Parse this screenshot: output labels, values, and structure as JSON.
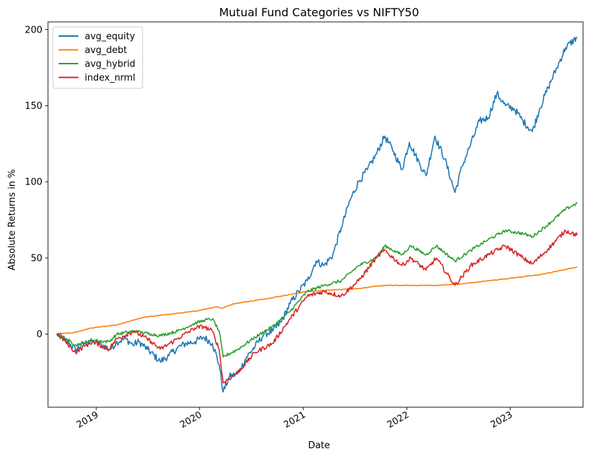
{
  "chart_data": {
    "type": "line",
    "title": "Mutual Fund Categories vs NIFTY50",
    "xlabel": "Date",
    "ylabel": "Absolute Returns in %",
    "xlim": [
      "2018-07-15",
      "2023-09-15"
    ],
    "ylim": [
      -48,
      205
    ],
    "x_ticks": [
      "2019-01-01",
      "2020-01-01",
      "2021-01-01",
      "2022-01-01",
      "2023-01-01"
    ],
    "x_tick_labels": [
      "2019",
      "2020",
      "2021",
      "2022",
      "2023"
    ],
    "y_ticks": [
      0,
      50,
      100,
      150,
      200
    ],
    "y_tick_labels": [
      "0",
      "50",
      "100",
      "150",
      "200"
    ],
    "grid": false,
    "legend_position": "top-left",
    "series": [
      {
        "name": "avg_equity",
        "color": "#1f77b4",
        "points": [
          [
            "2018-08-15",
            0
          ],
          [
            "2018-09-15",
            -4
          ],
          [
            "2018-10-20",
            -10
          ],
          [
            "2018-11-20",
            -6
          ],
          [
            "2018-12-20",
            -5
          ],
          [
            "2019-01-20",
            -7
          ],
          [
            "2019-02-20",
            -10
          ],
          [
            "2019-03-15",
            -5
          ],
          [
            "2019-04-15",
            -3
          ],
          [
            "2019-05-10",
            -7
          ],
          [
            "2019-06-01",
            -5
          ],
          [
            "2019-07-01",
            -10
          ],
          [
            "2019-08-15",
            -18
          ],
          [
            "2019-09-15",
            -14
          ],
          [
            "2019-10-15",
            -9
          ],
          [
            "2019-11-15",
            -6
          ],
          [
            "2019-12-15",
            -5
          ],
          [
            "2020-01-15",
            -2
          ],
          [
            "2020-02-15",
            -6
          ],
          [
            "2020-03-10",
            -20
          ],
          [
            "2020-03-24",
            -38
          ],
          [
            "2020-04-15",
            -28
          ],
          [
            "2020-05-15",
            -26
          ],
          [
            "2020-06-15",
            -15
          ],
          [
            "2020-07-15",
            -8
          ],
          [
            "2020-08-15",
            0
          ],
          [
            "2020-09-15",
            2
          ],
          [
            "2020-10-15",
            8
          ],
          [
            "2020-11-15",
            20
          ],
          [
            "2020-12-15",
            28
          ],
          [
            "2021-01-15",
            35
          ],
          [
            "2021-02-15",
            48
          ],
          [
            "2021-03-15",
            45
          ],
          [
            "2021-04-15",
            52
          ],
          [
            "2021-05-15",
            70
          ],
          [
            "2021-06-15",
            88
          ],
          [
            "2021-07-15",
            100
          ],
          [
            "2021-08-15",
            108
          ],
          [
            "2021-09-15",
            118
          ],
          [
            "2021-10-15",
            130
          ],
          [
            "2021-11-15",
            120
          ],
          [
            "2021-12-15",
            108
          ],
          [
            "2022-01-10",
            126
          ],
          [
            "2022-02-15",
            112
          ],
          [
            "2022-03-10",
            104
          ],
          [
            "2022-04-10",
            130
          ],
          [
            "2022-05-15",
            115
          ],
          [
            "2022-06-20",
            93
          ],
          [
            "2022-07-15",
            110
          ],
          [
            "2022-08-15",
            125
          ],
          [
            "2022-09-15",
            140
          ],
          [
            "2022-10-15",
            142
          ],
          [
            "2022-11-15",
            158
          ],
          [
            "2022-12-15",
            150
          ],
          [
            "2023-01-15",
            148
          ],
          [
            "2023-02-15",
            140
          ],
          [
            "2023-03-20",
            133
          ],
          [
            "2023-04-15",
            148
          ],
          [
            "2023-05-15",
            162
          ],
          [
            "2023-06-15",
            175
          ],
          [
            "2023-07-15",
            188
          ],
          [
            "2023-08-25",
            195
          ]
        ]
      },
      {
        "name": "avg_debt",
        "color": "#ff7f0e",
        "points": [
          [
            "2018-08-15",
            0
          ],
          [
            "2018-10-15",
            1
          ],
          [
            "2018-12-15",
            4
          ],
          [
            "2019-03-15",
            6
          ],
          [
            "2019-06-15",
            11
          ],
          [
            "2019-09-15",
            13
          ],
          [
            "2019-12-15",
            15
          ],
          [
            "2020-03-01",
            18
          ],
          [
            "2020-03-20",
            17
          ],
          [
            "2020-05-01",
            20
          ],
          [
            "2020-08-15",
            23
          ],
          [
            "2020-11-15",
            26
          ],
          [
            "2021-01-15",
            28
          ],
          [
            "2021-04-15",
            29
          ],
          [
            "2021-07-15",
            30
          ],
          [
            "2021-10-15",
            32
          ],
          [
            "2022-01-15",
            32
          ],
          [
            "2022-04-15",
            32
          ],
          [
            "2022-07-15",
            33
          ],
          [
            "2022-10-15",
            35
          ],
          [
            "2023-01-15",
            37
          ],
          [
            "2023-04-15",
            39
          ],
          [
            "2023-08-25",
            44
          ]
        ]
      },
      {
        "name": "avg_hybrid",
        "color": "#2ca02c",
        "points": [
          [
            "2018-08-15",
            0
          ],
          [
            "2018-09-15",
            -3
          ],
          [
            "2018-10-20",
            -7
          ],
          [
            "2018-11-20",
            -6
          ],
          [
            "2018-12-20",
            -4
          ],
          [
            "2019-02-15",
            -5
          ],
          [
            "2019-03-15",
            0
          ],
          [
            "2019-05-15",
            2
          ],
          [
            "2019-07-15",
            0
          ],
          [
            "2019-08-15",
            -1
          ],
          [
            "2019-10-15",
            2
          ],
          [
            "2019-12-15",
            7
          ],
          [
            "2020-01-15",
            9
          ],
          [
            "2020-02-15",
            10
          ],
          [
            "2020-03-10",
            2
          ],
          [
            "2020-03-24",
            -15
          ],
          [
            "2020-05-15",
            -10
          ],
          [
            "2020-07-15",
            -2
          ],
          [
            "2020-09-15",
            5
          ],
          [
            "2020-11-15",
            15
          ],
          [
            "2021-01-15",
            28
          ],
          [
            "2021-03-15",
            32
          ],
          [
            "2021-05-15",
            35
          ],
          [
            "2021-07-15",
            45
          ],
          [
            "2021-09-15",
            50
          ],
          [
            "2021-10-15",
            58
          ],
          [
            "2021-12-15",
            52
          ],
          [
            "2022-01-15",
            58
          ],
          [
            "2022-03-10",
            52
          ],
          [
            "2022-04-15",
            58
          ],
          [
            "2022-06-20",
            48
          ],
          [
            "2022-08-15",
            55
          ],
          [
            "2022-10-15",
            62
          ],
          [
            "2022-12-15",
            68
          ],
          [
            "2023-02-15",
            66
          ],
          [
            "2023-03-20",
            64
          ],
          [
            "2023-05-15",
            72
          ],
          [
            "2023-07-15",
            82
          ],
          [
            "2023-08-25",
            86
          ]
        ]
      },
      {
        "name": "index_nrml",
        "color": "#d62728",
        "points": [
          [
            "2018-08-15",
            0
          ],
          [
            "2018-09-15",
            -5
          ],
          [
            "2018-10-20",
            -12
          ],
          [
            "2018-11-20",
            -8
          ],
          [
            "2018-12-20",
            -5
          ],
          [
            "2019-02-15",
            -10
          ],
          [
            "2019-03-15",
            -3
          ],
          [
            "2019-05-15",
            2
          ],
          [
            "2019-07-15",
            -5
          ],
          [
            "2019-08-15",
            -10
          ],
          [
            "2019-10-15",
            -3
          ],
          [
            "2019-12-15",
            4
          ],
          [
            "2020-01-15",
            5
          ],
          [
            "2020-02-15",
            2
          ],
          [
            "2020-03-10",
            -10
          ],
          [
            "2020-03-24",
            -32
          ],
          [
            "2020-05-15",
            -25
          ],
          [
            "2020-07-15",
            -12
          ],
          [
            "2020-09-15",
            -6
          ],
          [
            "2020-11-15",
            10
          ],
          [
            "2021-01-15",
            25
          ],
          [
            "2021-03-15",
            28
          ],
          [
            "2021-05-15",
            25
          ],
          [
            "2021-07-15",
            35
          ],
          [
            "2021-09-15",
            50
          ],
          [
            "2021-10-15",
            55
          ],
          [
            "2021-12-15",
            45
          ],
          [
            "2022-01-15",
            50
          ],
          [
            "2022-03-10",
            42
          ],
          [
            "2022-04-15",
            50
          ],
          [
            "2022-06-20",
            32
          ],
          [
            "2022-08-15",
            45
          ],
          [
            "2022-10-15",
            52
          ],
          [
            "2022-12-15",
            58
          ],
          [
            "2023-02-15",
            50
          ],
          [
            "2023-03-20",
            46
          ],
          [
            "2023-05-15",
            56
          ],
          [
            "2023-07-15",
            68
          ],
          [
            "2023-08-25",
            65
          ]
        ]
      }
    ]
  }
}
